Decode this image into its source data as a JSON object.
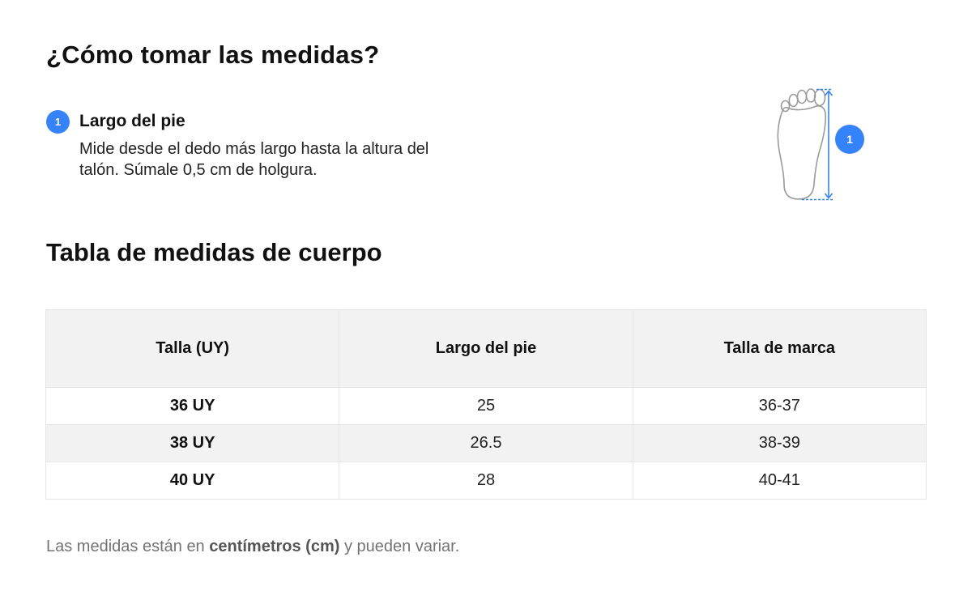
{
  "how_to": {
    "title": "¿Cómo tomar las medidas?",
    "step": {
      "number": "1",
      "title": "Largo del pie",
      "description": "Mide desde el dedo más largo hasta la altura del talón. Súmale 0,5 cm de holgura."
    },
    "illustration_badge": "1"
  },
  "size_table": {
    "title": "Tabla de medidas de cuerpo",
    "headers": [
      "Talla (UY)",
      "Largo del pie",
      "Talla de marca"
    ],
    "rows": [
      [
        "36 UY",
        "25",
        "36-37"
      ],
      [
        "38 UY",
        "26.5",
        "38-39"
      ],
      [
        "40 UY",
        "28",
        "40-41"
      ]
    ]
  },
  "footnote": {
    "prefix": "Las medidas están en ",
    "emphasis": "centímetros (cm)",
    "suffix": " y pueden variar."
  },
  "colors": {
    "accent": "#3483fa",
    "header_bg": "#f2f2f2",
    "border": "#e5e5e5",
    "muted_text": "#737373"
  },
  "icons": {
    "foot": "foot-outline-icon",
    "measure_arrow": "vertical-measure-arrow-icon"
  }
}
